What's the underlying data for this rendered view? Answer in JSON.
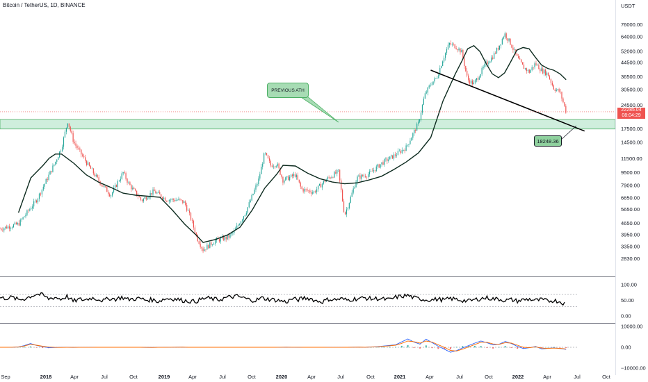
{
  "header": {
    "title": "Bitcoin / TetherUS, 1D, BINANCE",
    "unit": "USDT"
  },
  "annotations": {
    "callout_text": "PREVIOUS ATH",
    "level_value": "18248.36",
    "price_tag_value": "22285.04",
    "price_tag_countdown": "08:04:29"
  },
  "colors": {
    "candle_up": "#26a69a",
    "candle_down": "#ef5350",
    "moving_average": "#0d2b1f",
    "trendline": "#000000",
    "zone_fill": "#cfeedd",
    "zone_border": "#4caf64",
    "rsi_line": "#000000",
    "macd_line": "#2962ff",
    "signal_line": "#ff6d00"
  },
  "chart_data": [
    {
      "type": "candlestick",
      "title": "Bitcoin / TetherUS, 1D, BINANCE",
      "yscale": "log",
      "ylim": [
        2500,
        90000
      ],
      "y_ticks": [
        "76000.00",
        "64000.00",
        "52000.00",
        "44500.00",
        "36500.00",
        "30500.00",
        "24500.00",
        "17500.00",
        "14500.00",
        "11500.00",
        "9500.00",
        "7900.00",
        "6650.00",
        "5650.00",
        "4650.00",
        "3950.00",
        "3350.00",
        "2830.00"
      ],
      "x_ticks": [
        "Sep",
        "2018",
        "Apr",
        "Jul",
        "Oct",
        "2019",
        "Apr",
        "Jul",
        "Oct",
        "2020",
        "Apr",
        "Jul",
        "Oct",
        "2021",
        "Apr",
        "Jul",
        "Oct",
        "2022",
        "Apr",
        "Jul",
        "Oct"
      ],
      "x_tick_bold": [
        false,
        true,
        false,
        false,
        false,
        true,
        false,
        false,
        false,
        true,
        false,
        false,
        false,
        true,
        false,
        false,
        false,
        true,
        false,
        false,
        false
      ],
      "price_path": [
        [
          0,
          4300
        ],
        [
          3,
          4600
        ],
        [
          6,
          6500
        ],
        [
          9,
          11000
        ],
        [
          10,
          13500
        ],
        [
          11,
          19500
        ],
        [
          12,
          14500
        ],
        [
          14,
          11000
        ],
        [
          16,
          8500
        ],
        [
          18,
          6900
        ],
        [
          20,
          9500
        ],
        [
          21,
          8000
        ],
        [
          23,
          6400
        ],
        [
          25,
          7300
        ],
        [
          27,
          6500
        ],
        [
          29,
          6450
        ],
        [
          30,
          6200
        ],
        [
          31,
          5000
        ],
        [
          32,
          3800
        ],
        [
          33,
          3200
        ],
        [
          35,
          3650
        ],
        [
          37,
          3800
        ],
        [
          38,
          4100
        ],
        [
          40,
          5500
        ],
        [
          42,
          8500
        ],
        [
          43,
          12500
        ],
        [
          44,
          10500
        ],
        [
          45,
          10700
        ],
        [
          46,
          8500
        ],
        [
          48,
          9200
        ],
        [
          49,
          7500
        ],
        [
          51,
          7200
        ],
        [
          53,
          8600
        ],
        [
          55,
          9600
        ],
        [
          56,
          5200
        ],
        [
          57,
          6700
        ],
        [
          58,
          8800
        ],
        [
          60,
          9300
        ],
        [
          62,
          10800
        ],
        [
          64,
          12000
        ],
        [
          66,
          13500
        ],
        [
          68,
          19000
        ],
        [
          69,
          28000
        ],
        [
          70,
          33000
        ],
        [
          71,
          36000
        ],
        [
          72,
          47000
        ],
        [
          73,
          58000
        ],
        [
          74,
          56000
        ],
        [
          75,
          52000
        ],
        [
          76,
          35000
        ],
        [
          77,
          33000
        ],
        [
          78,
          38000
        ],
        [
          79,
          44000
        ],
        [
          80,
          48000
        ],
        [
          81,
          55000
        ],
        [
          82,
          67000
        ],
        [
          83,
          58000
        ],
        [
          84,
          48000
        ],
        [
          85,
          42000
        ],
        [
          86,
          39000
        ],
        [
          87,
          44000
        ],
        [
          88,
          40000
        ],
        [
          89,
          38000
        ],
        [
          90,
          31000
        ],
        [
          91,
          29500
        ],
        [
          92,
          22285
        ]
      ],
      "moving_average": [
        [
          3,
          5400
        ],
        [
          5,
          8800
        ],
        [
          7,
          10500
        ],
        [
          8,
          11600
        ],
        [
          9,
          12300
        ],
        [
          10,
          12300
        ],
        [
          12,
          10800
        ],
        [
          14,
          9200
        ],
        [
          16,
          8300
        ],
        [
          18,
          7700
        ],
        [
          20,
          7100
        ],
        [
          22,
          6900
        ],
        [
          24,
          6800
        ],
        [
          26,
          6700
        ],
        [
          28,
          5600
        ],
        [
          30,
          4600
        ],
        [
          32,
          3900
        ],
        [
          33,
          3550
        ],
        [
          35,
          3700
        ],
        [
          37,
          3950
        ],
        [
          39,
          4400
        ],
        [
          41,
          5600
        ],
        [
          43,
          7600
        ],
        [
          45,
          9300
        ],
        [
          46,
          10500
        ],
        [
          48,
          10400
        ],
        [
          50,
          9400
        ],
        [
          52,
          8700
        ],
        [
          54,
          8300
        ],
        [
          56,
          8100
        ],
        [
          58,
          8200
        ],
        [
          60,
          8550
        ],
        [
          62,
          9000
        ],
        [
          64,
          9900
        ],
        [
          66,
          11000
        ],
        [
          68,
          12500
        ],
        [
          70,
          15500
        ],
        [
          72,
          26000
        ],
        [
          74,
          38000
        ],
        [
          75,
          45000
        ],
        [
          76,
          54000
        ],
        [
          77,
          56500
        ],
        [
          78,
          52000
        ],
        [
          79,
          44000
        ],
        [
          80,
          38000
        ],
        [
          81,
          36000
        ],
        [
          82,
          38500
        ],
        [
          83,
          45000
        ],
        [
          84,
          53000
        ],
        [
          85,
          55000
        ],
        [
          86,
          54000
        ],
        [
          87,
          48000
        ],
        [
          88,
          43000
        ],
        [
          89,
          41000
        ],
        [
          90,
          40000
        ],
        [
          91,
          38000
        ],
        [
          92,
          35000
        ]
      ],
      "trendline": [
        [
          70,
          40000
        ],
        [
          95,
          17000
        ]
      ],
      "horizontal_zone": [
        17500,
        20000
      ],
      "highlighted_level": 18248.36,
      "annotations": [
        "PREVIOUS ATH",
        "18248.36"
      ]
    },
    {
      "type": "line",
      "title": "",
      "y_ticks": [
        "100.00",
        "50.00",
        "0.00"
      ],
      "ylim": [
        0,
        100
      ],
      "reference_lines": [
        70,
        30
      ],
      "values": [
        58,
        57,
        60,
        52,
        55,
        63,
        70,
        67,
        55,
        60,
        54,
        63,
        47,
        53,
        52,
        58,
        55,
        49,
        57,
        54,
        60,
        53,
        55,
        56,
        51,
        52,
        47,
        55,
        56,
        54,
        50,
        48,
        46,
        53,
        58,
        54,
        52,
        58,
        61,
        63,
        58,
        52,
        50,
        58,
        54,
        52,
        49,
        45,
        55,
        52,
        58,
        56,
        48,
        46,
        54,
        52,
        55,
        51,
        54,
        56,
        58,
        55,
        56,
        54,
        52,
        60,
        63,
        66,
        58,
        55,
        52,
        52,
        54,
        51,
        56,
        53,
        50,
        48,
        52,
        56,
        58,
        55,
        54,
        50,
        52,
        48,
        52,
        54,
        50,
        52,
        48,
        50,
        46,
        38
      ]
    },
    {
      "type": "line",
      "title": "",
      "y_ticks": [
        "10000.00",
        "0.00",
        "−10000.00"
      ],
      "ylim": [
        -10000,
        10000
      ],
      "series": [
        {
          "values": [
            0,
            10,
            30,
            150,
            800,
            1800,
            900,
            300,
            -200,
            -100,
            -50,
            0,
            -60,
            -20,
            -40,
            -10,
            0,
            30,
            -10,
            20,
            -30,
            10,
            0,
            -20,
            -60,
            -80,
            -40,
            0,
            50,
            80,
            60,
            -30,
            10,
            -10,
            20,
            -20,
            10,
            30,
            -10,
            0,
            20,
            -20,
            50,
            -30,
            -10,
            20,
            40,
            60,
            30,
            0,
            -10,
            20,
            -20,
            10,
            -30,
            -50,
            -30,
            10,
            60,
            80,
            40,
            150,
            300,
            600,
            900,
            1200,
            2600,
            4000,
            2500,
            1500,
            3900,
            2200,
            500,
            -900,
            -2400,
            -1600,
            -300,
            800,
            2000,
            3000,
            2200,
            1100,
            1500,
            2800,
            1800,
            400,
            -600,
            -200,
            400,
            -800,
            -500,
            -300,
            -600,
            -1000
          ]
        },
        {
          "values": [
            0,
            5,
            20,
            100,
            600,
            1400,
            1000,
            500,
            100,
            -50,
            -60,
            -30,
            -40,
            -30,
            -30,
            -20,
            -10,
            10,
            0,
            10,
            -10,
            0,
            0,
            -10,
            -40,
            -60,
            -50,
            -20,
            20,
            50,
            60,
            10,
            0,
            0,
            10,
            -10,
            0,
            20,
            0,
            0,
            10,
            -10,
            30,
            0,
            -10,
            10,
            30,
            40,
            40,
            20,
            0,
            10,
            -10,
            0,
            -20,
            -40,
            -40,
            0,
            40,
            60,
            50,
            100,
            220,
            450,
            700,
            1000,
            1900,
            3000,
            2700,
            2000,
            3000,
            2500,
            1200,
            0,
            -1500,
            -1800,
            -900,
            200,
            1300,
            2400,
            2400,
            1600,
            1400,
            2200,
            2000,
            1000,
            0,
            -200,
            200,
            -400,
            -500,
            -400,
            -500,
            -800
          ]
        }
      ]
    }
  ]
}
